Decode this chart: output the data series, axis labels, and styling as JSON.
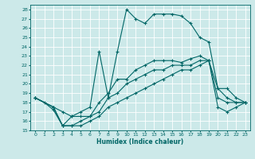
{
  "xlabel": "Humidex (Indice chaleur)",
  "background_color": "#cce9e9",
  "grid_color": "#ffffff",
  "line_color": "#006666",
  "xlim": [
    -0.5,
    23.5
  ],
  "ylim": [
    15,
    28.5
  ],
  "yticks": [
    15,
    16,
    17,
    18,
    19,
    20,
    21,
    22,
    23,
    24,
    25,
    26,
    27,
    28
  ],
  "xticks": [
    0,
    1,
    2,
    3,
    4,
    5,
    6,
    7,
    8,
    9,
    10,
    11,
    12,
    13,
    14,
    15,
    16,
    17,
    18,
    19,
    20,
    21,
    22,
    23
  ],
  "line1_x": [
    0,
    1,
    2,
    3,
    4,
    5,
    6,
    7,
    8,
    9,
    10,
    11,
    12,
    13,
    14,
    15,
    16,
    17,
    18,
    19,
    20,
    21,
    22,
    23
  ],
  "line1_y": [
    18.5,
    18.0,
    17.2,
    15.5,
    16.5,
    17.0,
    17.5,
    23.5,
    18.5,
    23.5,
    28.0,
    27.0,
    26.5,
    27.5,
    27.5,
    27.5,
    27.3,
    26.5,
    25.0,
    24.5,
    19.5,
    19.5,
    18.5,
    18.0
  ],
  "line2_x": [
    0,
    2,
    3,
    4,
    5,
    6,
    7,
    8,
    9,
    10,
    11,
    12,
    13,
    14,
    15,
    16,
    17,
    18,
    19,
    20,
    21,
    22,
    23
  ],
  "line2_y": [
    18.5,
    17.5,
    17.0,
    16.5,
    16.5,
    16.5,
    18.0,
    19.0,
    20.5,
    20.5,
    21.5,
    22.0,
    22.5,
    22.5,
    22.5,
    22.3,
    22.7,
    23.0,
    22.5,
    19.5,
    18.5,
    18.0,
    18.0
  ],
  "line3_x": [
    0,
    2,
    3,
    4,
    5,
    6,
    7,
    8,
    9,
    10,
    11,
    12,
    13,
    14,
    15,
    16,
    17,
    18,
    19,
    20,
    21,
    22,
    23
  ],
  "line3_y": [
    18.5,
    17.5,
    15.5,
    15.5,
    16.0,
    16.5,
    17.0,
    18.5,
    19.0,
    20.0,
    20.5,
    21.0,
    21.5,
    21.5,
    22.0,
    22.0,
    22.0,
    22.5,
    22.5,
    18.5,
    18.0,
    18.0,
    18.0
  ],
  "line4_x": [
    0,
    2,
    3,
    4,
    5,
    6,
    7,
    8,
    9,
    10,
    11,
    12,
    13,
    14,
    15,
    16,
    17,
    18,
    19,
    20,
    21,
    22,
    23
  ],
  "line4_y": [
    18.5,
    17.5,
    15.5,
    15.5,
    15.5,
    16.0,
    16.5,
    17.5,
    18.0,
    18.5,
    19.0,
    19.5,
    20.0,
    20.5,
    21.0,
    21.5,
    21.5,
    22.0,
    22.5,
    17.5,
    17.0,
    17.5,
    18.0
  ]
}
